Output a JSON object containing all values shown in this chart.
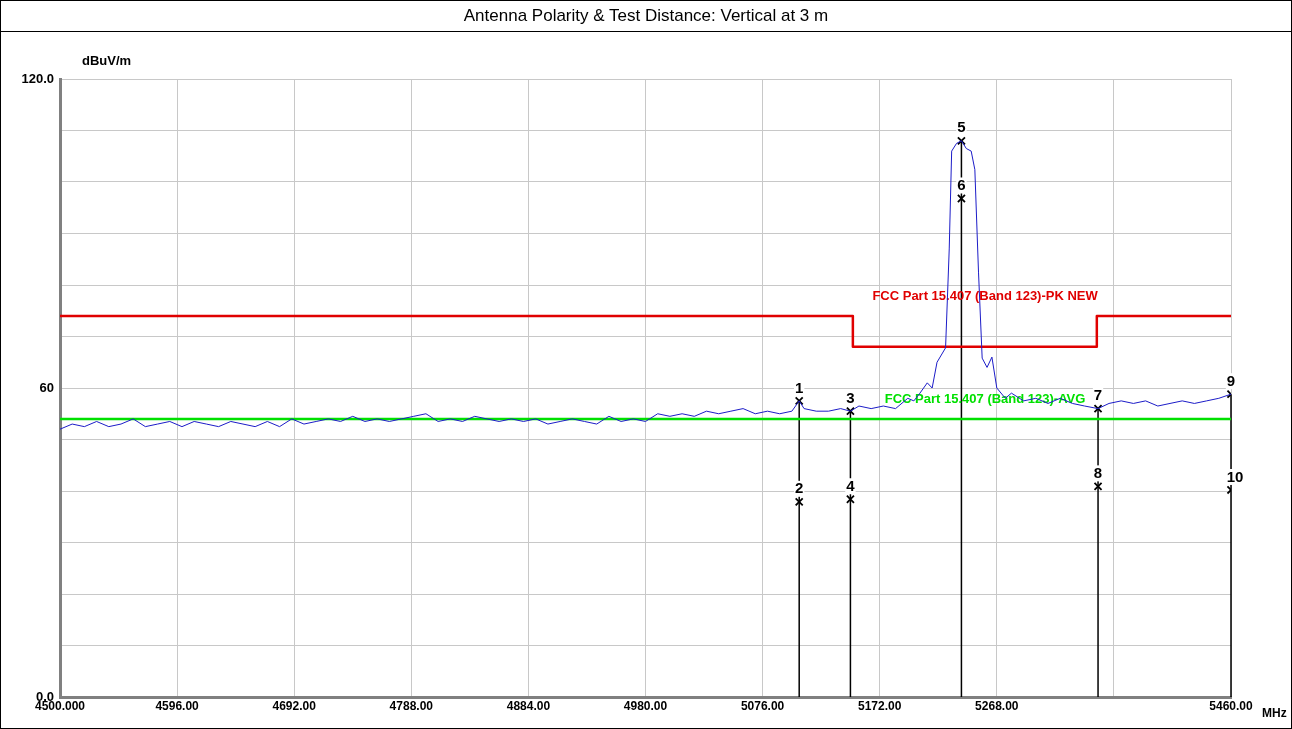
{
  "chart_data": {
    "type": "line",
    "title": "Antenna Polarity & Test Distance: Vertical at 3 m",
    "xlabel": "MHz",
    "ylabel": "dBuV/m",
    "xlim": [
      4500,
      5460
    ],
    "ylim": [
      0,
      120
    ],
    "xticks": [
      {
        "value": 4500,
        "label": "4500.000"
      },
      {
        "value": 4596,
        "label": "4596.00"
      },
      {
        "value": 4692,
        "label": "4692.00"
      },
      {
        "value": 4788,
        "label": "4788.00"
      },
      {
        "value": 4884,
        "label": "4884.00"
      },
      {
        "value": 4980,
        "label": "4980.00"
      },
      {
        "value": 5076,
        "label": "5076.00"
      },
      {
        "value": 5172,
        "label": "5172.00"
      },
      {
        "value": 5268,
        "label": "5268.00"
      },
      {
        "value": 5364,
        "label": null
      },
      {
        "value": 5460,
        "label": "5460.00"
      }
    ],
    "yticks": [
      {
        "value": 0,
        "label": "0.0"
      },
      {
        "value": 10,
        "label": null
      },
      {
        "value": 20,
        "label": null
      },
      {
        "value": 30,
        "label": null
      },
      {
        "value": 40,
        "label": null
      },
      {
        "value": 50,
        "label": null
      },
      60,
      {
        "value": 70,
        "label": null
      },
      {
        "value": 80,
        "label": null
      },
      {
        "value": 90,
        "label": null
      },
      {
        "value": 100,
        "label": null
      },
      {
        "value": 110,
        "label": null
      },
      {
        "value": 120,
        "label": "120.0"
      }
    ],
    "grid": true,
    "legend": false,
    "series": [
      {
        "color": "#1c1cc8",
        "marker": "none",
        "x": [
          4500,
          4510,
          4520,
          4530,
          4540,
          4550,
          4560,
          4570,
          4580,
          4590,
          4600,
          4610,
          4620,
          4630,
          4640,
          4650,
          4660,
          4670,
          4680,
          4690,
          4700,
          4710,
          4720,
          4730,
          4740,
          4750,
          4760,
          4770,
          4780,
          4790,
          4800,
          4810,
          4820,
          4830,
          4840,
          4850,
          4860,
          4870,
          4880,
          4890,
          4900,
          4910,
          4920,
          4930,
          4940,
          4950,
          4960,
          4970,
          4980,
          4990,
          5000,
          5010,
          5020,
          5030,
          5040,
          5050,
          5060,
          5070,
          5080,
          5090,
          5100,
          5106,
          5110,
          5120,
          5130,
          5140,
          5148,
          5155,
          5165,
          5175,
          5185,
          5195,
          5200,
          5205,
          5211,
          5215,
          5219,
          5226,
          5229,
          5231,
          5235,
          5239,
          5243,
          5247,
          5250,
          5253,
          5256,
          5260,
          5264,
          5268,
          5275,
          5280,
          5290,
          5300,
          5310,
          5320,
          5330,
          5340,
          5351,
          5360,
          5370,
          5380,
          5390,
          5400,
          5410,
          5420,
          5430,
          5440,
          5450,
          5460
        ],
        "values": [
          52,
          53,
          52.5,
          53.5,
          52.5,
          53,
          54,
          52.5,
          53,
          53.5,
          52.5,
          53.5,
          53,
          52.5,
          53.5,
          53,
          52.5,
          53.5,
          52.5,
          54,
          53,
          53.5,
          54,
          53.5,
          54.5,
          53.5,
          54,
          53.5,
          54,
          54.5,
          55,
          53.5,
          54,
          53.5,
          54.5,
          54,
          53.5,
          54,
          53.5,
          54,
          53,
          53.5,
          54,
          53.5,
          53,
          54.5,
          53.5,
          54,
          53.5,
          55,
          54.5,
          55,
          54.5,
          55.5,
          55,
          55.5,
          56,
          55,
          55.5,
          55,
          55.5,
          57.5,
          56,
          55.5,
          55.5,
          56,
          55.5,
          56.5,
          56,
          56.5,
          56,
          58,
          57.5,
          59,
          61,
          60,
          65,
          67.8,
          87,
          106,
          107.5,
          108,
          106.5,
          106,
          102.4,
          82.5,
          65.8,
          64,
          66,
          60,
          58,
          59,
          57.5,
          58,
          57,
          58,
          57,
          56.5,
          56,
          57,
          57.5,
          57,
          57.5,
          56.5,
          57,
          57.5,
          57,
          57.5,
          58,
          58.8
        ]
      },
      {
        "name": "FCC Part 15.407 (Band 123)-PK NEW",
        "color": "#e00000",
        "marker": "none",
        "x": [
          4500,
          5150,
          5150,
          5350,
          5350,
          5460
        ],
        "values": [
          74,
          74,
          68,
          68,
          74,
          74
        ]
      },
      {
        "name": "FCC Part 15.407 (Band 123)-AVG",
        "color": "#00e000",
        "marker": "none",
        "x": [
          4500,
          5460
        ],
        "values": [
          54,
          54
        ]
      },
      {
        "type": "lollipop",
        "color": "#000000",
        "marker": "cross",
        "x": [
          5106,
          5148,
          5239,
          5351,
          5460
        ],
        "values": [
          57.5,
          55.5,
          108,
          56,
          58.8
        ]
      },
      {
        "type": "scatter",
        "color": "#000000",
        "marker": "cross",
        "x": [
          5106,
          5148,
          5239,
          5351,
          5460
        ],
        "values": [
          37.9,
          38.4,
          96.8,
          40.9,
          40.2
        ]
      }
    ],
    "annotations": [
      {
        "text": "1",
        "x": 5106,
        "y": 57.5
      },
      {
        "text": "2",
        "x": 5106,
        "y": 37.9
      },
      {
        "text": "3",
        "x": 5148,
        "y": 55.5
      },
      {
        "text": "4",
        "x": 5148,
        "y": 38.4
      },
      {
        "text": "5",
        "x": 5239,
        "y": 108
      },
      {
        "text": "6",
        "x": 5239,
        "y": 96.8
      },
      {
        "text": "7",
        "x": 5351,
        "y": 56
      },
      {
        "text": "8",
        "x": 5351,
        "y": 40.9
      },
      {
        "text": "9",
        "x": 5460,
        "y": 58.8
      },
      {
        "text": "10",
        "x": 5460,
        "y": 40.2
      }
    ]
  }
}
